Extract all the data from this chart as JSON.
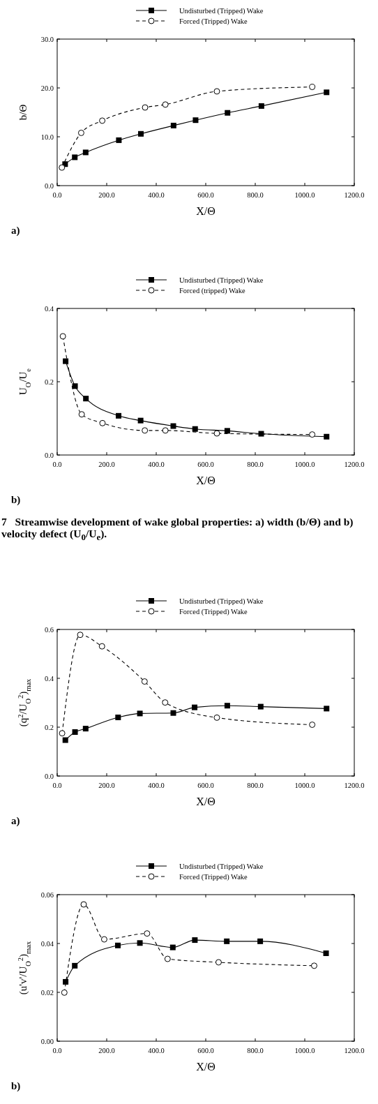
{
  "chart_data": [
    {
      "type": "line",
      "ylabel": "b/Θ",
      "xlabel": "X/Θ",
      "legend": "top",
      "xlim": [
        0,
        1200
      ],
      "ylim": [
        0,
        30
      ],
      "xticks": [
        {
          "value": 0,
          "label": "0.0"
        },
        {
          "value": 200,
          "label": "200.0"
        },
        {
          "value": 400,
          "label": "400.0"
        },
        {
          "value": 600,
          "label": "600.0"
        },
        {
          "value": 800,
          "label": "800.0"
        },
        {
          "value": 1000,
          "label": "1000.0"
        },
        {
          "value": 1200,
          "label": "1200.0"
        }
      ],
      "yticks": [
        {
          "value": 0,
          "label": "0.0"
        },
        {
          "value": 10,
          "label": "10.0"
        },
        {
          "value": 20,
          "label": "20.0"
        },
        {
          "value": 30,
          "label": "30.0"
        }
      ],
      "series": [
        {
          "name": "Undisturbed (Tripped) Wake",
          "color": "#000000",
          "marker": "square",
          "line_style": "solid",
          "x": [
            32,
            71,
            115,
            249,
            338,
            470,
            559,
            688,
            825,
            1088
          ],
          "values": [
            4.4,
            5.8,
            6.8,
            9.3,
            10.6,
            12.3,
            13.4,
            14.9,
            16.3,
            19.1
          ]
        },
        {
          "name": "Forced (Tripped) Wake",
          "color": "#000000",
          "marker": "circle",
          "line_style": "dashed",
          "x": [
            19,
            97,
            182,
            355,
            437,
            645,
            1030
          ],
          "values": [
            3.7,
            10.8,
            13.3,
            16.0,
            16.6,
            19.3,
            20.2
          ]
        }
      ],
      "annotations": [
        "a)"
      ]
    },
    {
      "type": "line",
      "ylabel": "U$_{O}$/U$_{e}$",
      "xlabel": "X/Θ",
      "legend": "top",
      "xlim": [
        0,
        1200
      ],
      "ylim": [
        0,
        0.4
      ],
      "xticks": [
        {
          "value": 0,
          "label": "0.0"
        },
        {
          "value": 200,
          "label": "200.0"
        },
        {
          "value": 400,
          "label": "400.0"
        },
        {
          "value": 600,
          "label": "600.0"
        },
        {
          "value": 800,
          "label": "800.0"
        },
        {
          "value": 1000,
          "label": "1000.0"
        },
        {
          "value": 1200,
          "label": "1200.0"
        }
      ],
      "yticks": [
        {
          "value": 0,
          "label": "0.0"
        },
        0.2,
        0.4
      ],
      "series": [
        {
          "name": "Undisturbed (Tripped) Wake",
          "color": "#000000",
          "marker": "square",
          "line_style": "solid",
          "x": [
            34,
            72,
            116,
            248,
            337,
            469,
            557,
            687,
            824,
            1088
          ],
          "values": [
            0.256,
            0.188,
            0.154,
            0.107,
            0.094,
            0.079,
            0.071,
            0.066,
            0.058,
            0.05
          ]
        },
        {
          "name": "Forced (tripped) Wake",
          "color": "#000000",
          "marker": "circle",
          "line_style": "dashed",
          "x": [
            23,
            99,
            183,
            354,
            437,
            645,
            1030
          ],
          "values": [
            0.324,
            0.111,
            0.087,
            0.067,
            0.067,
            0.059,
            0.056
          ]
        }
      ],
      "annotations": [
        "b)",
        "7   Streamwise development of wake global properties: a) width (b/Θ) and b) velocity defect (U$_{0}$/U$_{e}$)."
      ]
    },
    {
      "type": "line",
      "ylabel": "(q$^{2}$/U$_{O}$$^{2}$)$_{max}$",
      "xlabel": "X/Θ",
      "legend": "top",
      "xlim": [
        0,
        1200
      ],
      "ylim": [
        0,
        0.6
      ],
      "xticks": [
        {
          "value": 0,
          "label": "0.0"
        },
        {
          "value": 200,
          "label": "200.0"
        },
        {
          "value": 400,
          "label": "400.0"
        },
        {
          "value": 600,
          "label": "600.0"
        },
        {
          "value": 800,
          "label": "800.0"
        },
        {
          "value": 1000,
          "label": "1000.0"
        },
        {
          "value": 1200,
          "label": "1200.0"
        }
      ],
      "yticks": [
        {
          "value": 0,
          "label": "0.0"
        },
        0.2,
        0.4,
        0.6
      ],
      "series": [
        {
          "name": "Undisturbed (Tripped) Wake",
          "color": "#000000",
          "marker": "square",
          "line_style": "solid",
          "x": [
            33,
            72,
            115,
            246,
            334,
            469,
            555,
            687,
            822,
            1088
          ],
          "values": [
            0.147,
            0.18,
            0.194,
            0.24,
            0.256,
            0.258,
            0.281,
            0.288,
            0.284,
            0.276
          ]
        },
        {
          "name": "Forced (Tripped) Wake",
          "color": "#000000",
          "marker": "circle",
          "line_style": "dashed",
          "x": [
            20,
            93,
            181,
            353,
            436,
            645,
            1030
          ],
          "values": [
            0.175,
            0.578,
            0.531,
            0.387,
            0.301,
            0.239,
            0.21
          ]
        }
      ],
      "annotations": [
        "a)"
      ]
    },
    {
      "type": "line",
      "ylabel": "(u'v'/U$_{O}$$^{2}$)$_{max}$",
      "xlabel": "X/Θ",
      "legend": "top",
      "xlim": [
        0,
        1200
      ],
      "ylim": [
        0,
        0.06
      ],
      "xticks": [
        {
          "value": 0,
          "label": "0.0"
        },
        {
          "value": 200,
          "label": "200.0"
        },
        {
          "value": 400,
          "label": "400.0"
        },
        {
          "value": 600,
          "label": "600.0"
        },
        {
          "value": 800,
          "label": "800.0"
        },
        {
          "value": 1000,
          "label": "1000.0"
        },
        {
          "value": 1200,
          "label": "1200.0"
        }
      ],
      "yticks": [
        {
          "value": 0,
          "label": "0.00"
        },
        {
          "value": 0.02,
          "label": "0.02"
        },
        {
          "value": 0.04,
          "label": "0.04"
        },
        {
          "value": 0.06,
          "label": "0.06"
        }
      ],
      "series": [
        {
          "name": "Undisturbed (Tripped) Wake",
          "color": "#000000",
          "marker": "square",
          "line_style": "solid",
          "x": [
            34,
            71,
            245,
            334,
            467,
            556,
            685,
            820,
            1086
          ],
          "values": [
            0.0243,
            0.0309,
            0.0392,
            0.0402,
            0.0384,
            0.0414,
            0.0409,
            0.0409,
            0.036
          ]
        },
        {
          "name": "Forced (Tripped) Wake",
          "color": "#000000",
          "marker": "circle",
          "line_style": "dashed",
          "x": [
            29,
            107,
            190,
            363,
            446,
            652,
            1038
          ],
          "values": [
            0.0199,
            0.056,
            0.0417,
            0.0441,
            0.0337,
            0.0323,
            0.0309
          ]
        }
      ],
      "annotations": [
        "b)"
      ]
    }
  ]
}
